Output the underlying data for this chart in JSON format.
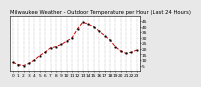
{
  "title": "Milwaukee Weather - Outdoor Temperature per Hour (Last 24 Hours)",
  "hours": [
    0,
    1,
    2,
    3,
    4,
    5,
    6,
    7,
    8,
    9,
    10,
    11,
    12,
    13,
    14,
    15,
    16,
    17,
    18,
    19,
    20,
    21,
    22,
    23
  ],
  "temps": [
    8,
    6,
    5,
    7,
    10,
    14,
    17,
    21,
    22,
    24,
    27,
    30,
    38,
    44,
    42,
    40,
    36,
    32,
    28,
    22,
    18,
    16,
    17,
    19
  ],
  "line_color": "#cc0000",
  "marker_color": "#000000",
  "bg_color": "#e8e8e8",
  "plot_bg_color": "#ffffff",
  "grid_color": "#888888",
  "title_fontsize": 3.8,
  "tick_fontsize": 3.2,
  "ylim": [
    0,
    50
  ],
  "yticks": [
    5,
    10,
    15,
    20,
    25,
    30,
    35,
    40,
    45
  ]
}
